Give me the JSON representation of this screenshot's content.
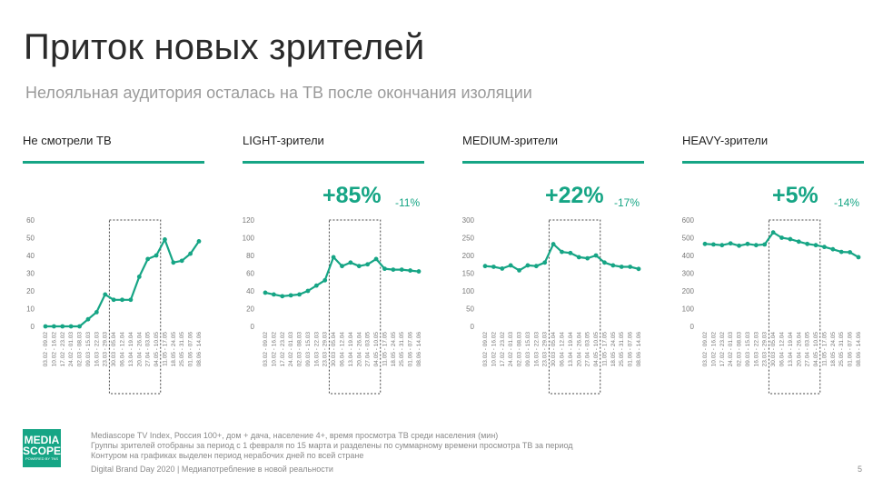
{
  "title": "Приток новых зрителей",
  "subtitle": "Нелояльная аудитория осталась на ТВ после окончания изоляции",
  "chart_data": [
    {
      "type": "line",
      "title": "Не смотрели ТВ",
      "highlight": "",
      "highlight_sub": "",
      "y_ticks": [
        0,
        10,
        20,
        30,
        40,
        50,
        60
      ],
      "ylim": [
        0,
        60
      ],
      "categories": [
        "03.02 - 09.02",
        "10.02 - 16.02",
        "17.02 - 23.02",
        "24.02 - 01.03",
        "02.03 - 08.03",
        "09.03 - 15.03",
        "16.03 - 22.03",
        "23.03 - 29.03",
        "30.03 - 05.04",
        "06.04 - 12.04",
        "13.04 - 19.04",
        "20.04 - 26.04",
        "27.04 - 03.05",
        "04.05 - 10.05",
        "11.05 - 17.05",
        "18.05 - 24.05",
        "25.05 - 31.05",
        "01.06 - 07.06",
        "08.06 - 14.06"
      ],
      "values": [
        0,
        0,
        0,
        0,
        0,
        4,
        8,
        18,
        15,
        15,
        15,
        28,
        38,
        40,
        49,
        36,
        37,
        41,
        48
      ],
      "isolation_box": [
        "30.03 - 05.04",
        "04.05 - 10.05"
      ],
      "color": "#16a585"
    },
    {
      "type": "line",
      "title": "LIGHT-зрители",
      "highlight": "+85%",
      "highlight_sub": "-11%",
      "y_ticks": [
        0,
        20,
        40,
        60,
        80,
        100,
        120
      ],
      "ylim": [
        0,
        120
      ],
      "categories": [
        "03.02 - 09.02",
        "10.02 - 16.02",
        "17.02 - 23.02",
        "24.02 - 01.03",
        "02.03 - 08.03",
        "09.03 - 15.03",
        "16.03 - 22.03",
        "23.03 - 29.03",
        "30.03 - 05.04",
        "06.04 - 12.04",
        "13.04 - 19.04",
        "20.04 - 26.04",
        "27.04 - 03.05",
        "04.05 - 10.05",
        "11.05 - 17.05",
        "18.05 - 24.05",
        "25.05 - 31.05",
        "01.06 - 07.06",
        "08.06 - 14.06"
      ],
      "values": [
        38,
        36,
        34,
        35,
        36,
        40,
        46,
        52,
        78,
        68,
        72,
        68,
        70,
        76,
        65,
        64,
        64,
        63,
        62
      ],
      "isolation_box": [
        "30.03 - 05.04",
        "04.05 - 10.05"
      ],
      "color": "#16a585"
    },
    {
      "type": "line",
      "title": "MEDIUM-зрители",
      "highlight": "+22%",
      "highlight_sub": "-17%",
      "y_ticks": [
        0,
        50,
        100,
        150,
        200,
        250,
        300
      ],
      "ylim": [
        0,
        300
      ],
      "categories": [
        "03.02 - 09.02",
        "10.02 - 16.02",
        "17.02 - 23.02",
        "24.02 - 01.03",
        "02.03 - 08.03",
        "09.03 - 15.03",
        "16.03 - 22.03",
        "23.03 - 29.03",
        "30.03 - 05.04",
        "06.04 - 12.04",
        "13.04 - 19.04",
        "20.04 - 26.04",
        "27.04 - 03.05",
        "04.05 - 10.05",
        "11.05 - 17.05",
        "18.05 - 24.05",
        "25.05 - 31.05",
        "01.06 - 07.06",
        "08.06 - 14.06"
      ],
      "values": [
        170,
        168,
        163,
        172,
        158,
        172,
        170,
        180,
        232,
        210,
        207,
        195,
        192,
        200,
        180,
        172,
        168,
        168,
        162
      ],
      "isolation_box": [
        "30.03 - 05.04",
        "04.05 - 10.05"
      ],
      "color": "#16a585"
    },
    {
      "type": "line",
      "title": "HEAVY-зрители",
      "highlight": "+5%",
      "highlight_sub": "-14%",
      "y_ticks": [
        0,
        100,
        200,
        300,
        400,
        500,
        600
      ],
      "ylim": [
        0,
        600
      ],
      "categories": [
        "03.02 - 09.02",
        "10.02 - 16.02",
        "17.02 - 23.02",
        "24.02 - 01.03",
        "02.03 - 08.03",
        "09.03 - 15.03",
        "16.03 - 22.03",
        "23.03 - 29.03",
        "30.03 - 05.04",
        "06.04 - 12.04",
        "13.04 - 19.04",
        "20.04 - 26.04",
        "27.04 - 03.05",
        "04.05 - 10.05",
        "11.05 - 17.05",
        "18.05 - 24.05",
        "25.05 - 31.05",
        "01.06 - 07.06",
        "08.06 - 14.06"
      ],
      "values": [
        465,
        462,
        458,
        468,
        455,
        465,
        458,
        462,
        530,
        500,
        492,
        478,
        465,
        458,
        448,
        435,
        420,
        418,
        390
      ],
      "isolation_box": [
        "30.03 - 05.04",
        "04.05 - 10.05"
      ],
      "color": "#16a585"
    }
  ],
  "footer": {
    "logo_text": "MEDIA SCOPE",
    "logo_sub": "POWERED BY TNS",
    "line1": "Mediascope TV Index, Россия 100+, дом + дача, население 4+, время просмотра ТВ среди населения (мин)",
    "line2": "Группы зрителей отобраны за период с 1 февраля по 15 марта и разделены по суммарному времени просмотра ТВ за период",
    "line3": "Контуром на графиках выделен период нерабочих дней по всей стране",
    "line4": "Digital Brand Day 2020 | Медиапотребление в новой реальности",
    "page": "5"
  }
}
